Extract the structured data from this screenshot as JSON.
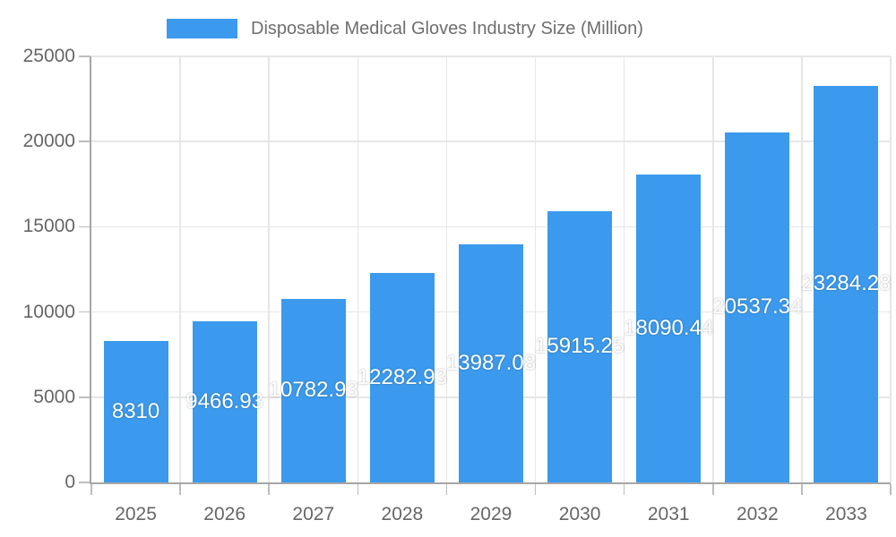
{
  "legend": {
    "label": "Disposable Medical Gloves Industry Size (Million)"
  },
  "chart_data": {
    "type": "bar",
    "title": "",
    "categories": [
      "2025",
      "2026",
      "2027",
      "2028",
      "2029",
      "2030",
      "2031",
      "2032",
      "2033"
    ],
    "series": [
      {
        "name": "Disposable Medical Gloves Industry Size (Million)",
        "values": [
          8310,
          9466.93,
          10782.93,
          12282.93,
          13987.08,
          15915.25,
          18090.44,
          20537.34,
          23284.28
        ]
      }
    ],
    "xlabel": "",
    "ylabel": "",
    "ylim": [
      0,
      25000
    ],
    "yticks": [
      0,
      5000,
      10000,
      15000,
      20000,
      25000
    ],
    "grid": true,
    "legend_position": "top-center",
    "bar_value_labels_inside": true,
    "colors": {
      "bar": "#3B9AED",
      "bar_label": "#ffffff",
      "axis_text": "#666666",
      "legend_text": "#6e6e6e",
      "gridline": "#e6e6e6",
      "axis_line": "#a6a6a6",
      "tick": "#bdbdbd",
      "background": "#ffffff"
    }
  }
}
